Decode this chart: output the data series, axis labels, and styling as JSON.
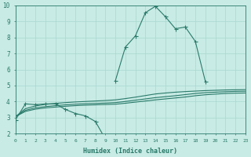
{
  "xlabel": "Humidex (Indice chaleur)",
  "bg_color": "#c8ebe5",
  "grid_color": "#a8d8d0",
  "line_color": "#2a7a6a",
  "xlim": [
    0,
    23
  ],
  "ylim": [
    2,
    10
  ],
  "x_ticks": [
    0,
    1,
    2,
    3,
    4,
    5,
    6,
    7,
    8,
    9,
    10,
    11,
    12,
    13,
    14,
    15,
    16,
    17,
    18,
    19,
    20,
    21,
    22,
    23
  ],
  "y_ticks": [
    2,
    3,
    4,
    5,
    6,
    7,
    8,
    9,
    10
  ],
  "peak_x": [
    10,
    11,
    12,
    13,
    14,
    15,
    16,
    17,
    18,
    19
  ],
  "peak_y": [
    5.3,
    7.4,
    8.1,
    9.55,
    9.95,
    9.3,
    8.55,
    8.65,
    7.75,
    5.25
  ],
  "dip_x": [
    0,
    1,
    2,
    3,
    4,
    5,
    6,
    7,
    8,
    9
  ],
  "dip_y": [
    2.85,
    3.85,
    3.8,
    3.85,
    3.85,
    3.5,
    3.25,
    3.1,
    2.75,
    1.65
  ],
  "smooth1_x": [
    0,
    1,
    2,
    3,
    4,
    5,
    6,
    7,
    8,
    9,
    10,
    11,
    12,
    13,
    14,
    15,
    16,
    17,
    18,
    19,
    20,
    21,
    22,
    23
  ],
  "smooth1_y": [
    3.05,
    3.55,
    3.72,
    3.82,
    3.88,
    3.93,
    3.97,
    4.0,
    4.03,
    4.06,
    4.1,
    4.18,
    4.27,
    4.37,
    4.47,
    4.53,
    4.58,
    4.62,
    4.65,
    4.68,
    4.7,
    4.72,
    4.73,
    4.74
  ],
  "smooth2_x": [
    0,
    1,
    2,
    3,
    4,
    5,
    6,
    7,
    8,
    9,
    10,
    11,
    12,
    13,
    14,
    15,
    16,
    17,
    18,
    19,
    20,
    21,
    22,
    23
  ],
  "smooth2_y": [
    3.05,
    3.45,
    3.6,
    3.68,
    3.74,
    3.79,
    3.83,
    3.86,
    3.88,
    3.9,
    3.93,
    4.0,
    4.08,
    4.16,
    4.24,
    4.3,
    4.36,
    4.43,
    4.5,
    4.55,
    4.58,
    4.61,
    4.63,
    4.64
  ],
  "smooth3_x": [
    0,
    1,
    2,
    3,
    4,
    5,
    6,
    7,
    8,
    9,
    10,
    11,
    12,
    13,
    14,
    15,
    16,
    17,
    18,
    19,
    20,
    21,
    22,
    23
  ],
  "smooth3_y": [
    3.05,
    3.38,
    3.52,
    3.6,
    3.65,
    3.7,
    3.74,
    3.77,
    3.79,
    3.81,
    3.83,
    3.89,
    3.96,
    4.03,
    4.1,
    4.16,
    4.22,
    4.28,
    4.36,
    4.42,
    4.46,
    4.5,
    4.52,
    4.53
  ]
}
